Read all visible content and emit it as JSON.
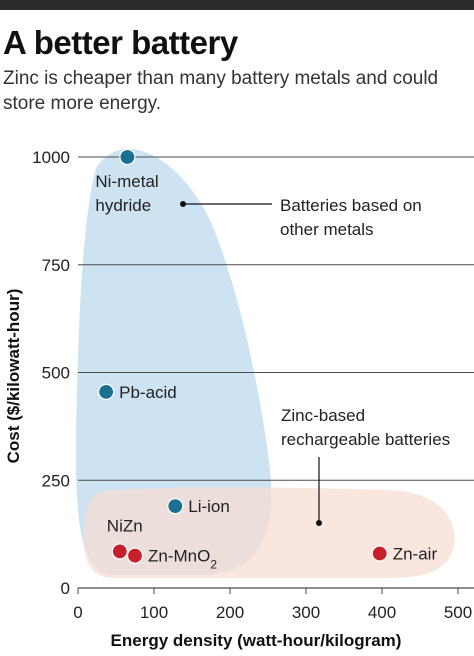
{
  "header": {
    "title": "A better battery",
    "subtitle": "Zinc is cheaper than many battery metals and could store more energy."
  },
  "colors": {
    "other_metals_region": "#c8e0ef",
    "zinc_region": "#f6ddd2",
    "other_metals_point": "#1b6f91",
    "zinc_point": "#c8202b",
    "gridline": "#4a4a4a"
  },
  "chart_data": {
    "type": "scatter",
    "title": "A better battery",
    "subtitle": "Zinc is cheaper than many battery metals and could store more energy.",
    "xlabel": "Energy density (watt-hour/kilogram)",
    "ylabel": "Cost ($/kilowatt-hour)",
    "xlim": [
      0,
      500
    ],
    "ylim": [
      0,
      1000
    ],
    "xticks": [
      0,
      100,
      200,
      300,
      400,
      500
    ],
    "yticks": [
      0,
      250,
      500,
      750,
      1000
    ],
    "grid": "horizontal",
    "points": [
      {
        "label": "Ni-metal hydride",
        "x": 65,
        "y": 1000,
        "group": "other"
      },
      {
        "label": "Pb-acid",
        "x": 37,
        "y": 455,
        "group": "other"
      },
      {
        "label": "Li-ion",
        "x": 128,
        "y": 190,
        "group": "other"
      },
      {
        "label": "NiZn",
        "x": 55,
        "y": 85,
        "group": "zinc"
      },
      {
        "label": "Zn-MnO",
        "label_sub": "2",
        "x": 75,
        "y": 75,
        "group": "zinc"
      },
      {
        "label": "Zn-air",
        "x": 397,
        "y": 80,
        "group": "zinc"
      }
    ],
    "groups": [
      {
        "key": "other",
        "label_lines": [
          "Batteries based on",
          "other metals"
        ]
      },
      {
        "key": "zinc",
        "label_lines": [
          "Zinc-based",
          "rechargeable batteries"
        ]
      }
    ]
  }
}
